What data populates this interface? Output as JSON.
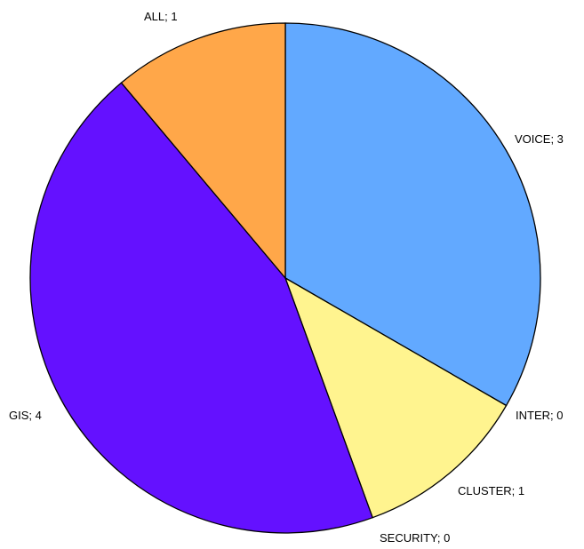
{
  "chart_data": {
    "type": "pie",
    "title": "",
    "start_angle_deg": 0,
    "direction": "clockwise",
    "slices": [
      {
        "label": "VOICE; 3",
        "category": "VOICE",
        "value": 3,
        "color": "#62a9ff"
      },
      {
        "label": "INTER; 0",
        "category": "INTER",
        "value": 0,
        "color": "#62a9ff"
      },
      {
        "label": "CLUSTER; 1",
        "category": "CLUSTER",
        "value": 1,
        "color": "#fff48f"
      },
      {
        "label": "SECURITY; 0",
        "category": "SECURITY",
        "value": 0,
        "color": "#fff48f"
      },
      {
        "label": "GIS; 4",
        "category": "GIS",
        "value": 4,
        "color": "#6411ff"
      },
      {
        "label": "ALL; 1",
        "category": "ALL",
        "value": 1,
        "color": "#ffa749"
      }
    ]
  }
}
